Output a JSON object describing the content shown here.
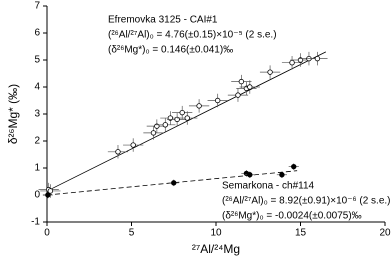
{
  "chart_data": {
    "type": "scatter",
    "x_label": "²⁷Al/²⁴Mg",
    "y_label": "δ²⁶Mg* (‰)",
    "xlim": [
      0,
      20
    ],
    "ylim": [
      -1,
      7
    ],
    "xticks": [
      0,
      5,
      10,
      15,
      20
    ],
    "yticks": [
      -1,
      0,
      1,
      2,
      3,
      4,
      5,
      6,
      7
    ],
    "series": [
      {
        "name": "Efremovka 3125 - CAI#1",
        "color": "#000000",
        "marker": "open",
        "x": [
          0.1,
          0.2,
          4.2,
          5.1,
          6.3,
          6.5,
          7.0,
          7.3,
          7.7,
          8.0,
          8.3,
          9.0,
          10.1,
          11.3,
          11.5,
          11.8,
          12.0,
          13.2,
          14.5,
          15.0,
          15.5,
          16.0
        ],
        "values": [
          0.2,
          0.15,
          1.6,
          1.85,
          2.3,
          2.55,
          2.6,
          2.85,
          2.8,
          3.05,
          2.85,
          3.3,
          3.5,
          3.7,
          4.2,
          3.95,
          4.0,
          4.55,
          4.9,
          5.0,
          5.05,
          5.05
        ],
        "xerr": 0.6,
        "yerr": 0.25,
        "fit": {
          "x": [
            0,
            16.5
          ],
          "values": [
            0.146,
            5.3
          ],
          "dash": false
        },
        "annotation": [
          "Efremovka 3125 - CAI#1",
          "(²⁶Al/²⁷Al)₀ = 4.76(±0.15)×10⁻⁵ (2 s.e.)",
          "(δ²⁶Mg*)₀ = 0.146(±0.041)‰"
        ]
      },
      {
        "name": "Semarkona - ch#114",
        "color": "#000000",
        "marker": "filled",
        "x": [
          0.05,
          7.5,
          11.8,
          12.0,
          13.9,
          14.6
        ],
        "values": [
          0.0,
          0.45,
          0.8,
          0.75,
          0.75,
          1.05
        ],
        "xerr": 0.3,
        "yerr": 0.12,
        "fit": {
          "x": [
            0,
            14.8
          ],
          "values": [
            -0.0024,
            0.9
          ],
          "dash": true
        },
        "annotation": [
          "Semarkona - ch#114",
          "(²⁶Al/²⁷Al)₀ = 8.92(±0.91)×10⁻⁶ (2 s.e.)",
          "(δ²⁶Mg*)₀ = -0.0024(±0.0075)‰"
        ]
      }
    ]
  }
}
